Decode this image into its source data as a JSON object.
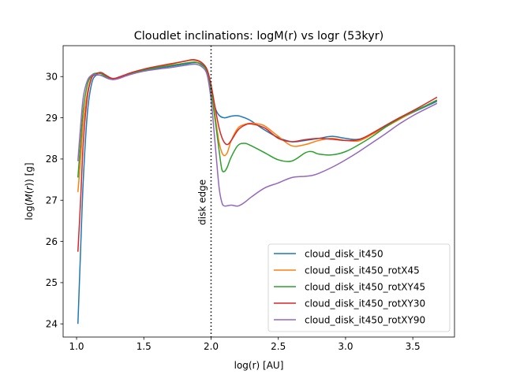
{
  "chart_data": {
    "type": "line",
    "title": "Cloudlet inclinations: logM(r) vs logr (53kyr)",
    "xlabel": "log(r) [AU]",
    "ylabel_prefix": "log(",
    "ylabel_math": "M",
    "ylabel_open": "(",
    "ylabel_var": "r",
    "ylabel_suffix": ")) [g]",
    "xlim": [
      0.9,
      3.81
    ],
    "ylim": [
      23.68,
      30.75
    ],
    "xticks": [
      1.0,
      1.5,
      2.0,
      2.5,
      3.0,
      3.5
    ],
    "xtick_labels": [
      "1.0",
      "1.5",
      "2.0",
      "2.5",
      "3.0",
      "3.5"
    ],
    "yticks": [
      24,
      25,
      26,
      27,
      28,
      29,
      30
    ],
    "ytick_labels": [
      "24",
      "25",
      "26",
      "27",
      "28",
      "29",
      "30"
    ],
    "grid": false,
    "legend_position": "lower-right",
    "annotation": {
      "text": "disk edge",
      "x": 2.0,
      "style": "dotted vertical line"
    },
    "series": [
      {
        "name": "cloud_disk_it450",
        "color": "#1f77b4",
        "x": [
          1.01,
          1.03,
          1.05,
          1.08,
          1.11,
          1.14,
          1.18,
          1.22,
          1.26,
          1.3,
          1.4,
          1.5,
          1.6,
          1.7,
          1.8,
          1.88,
          1.93,
          1.97,
          2.0,
          2.03,
          2.06,
          2.1,
          2.15,
          2.2,
          2.25,
          2.3,
          2.4,
          2.5,
          2.6,
          2.7,
          2.8,
          2.9,
          3.0,
          3.1,
          3.2,
          3.3,
          3.4,
          3.5,
          3.6,
          3.68
        ],
        "y": [
          24.0,
          25.8,
          27.5,
          29.1,
          29.8,
          30.02,
          30.03,
          29.98,
          29.94,
          29.96,
          30.08,
          30.15,
          30.2,
          30.25,
          30.3,
          30.34,
          30.3,
          30.15,
          29.72,
          29.25,
          29.06,
          29.0,
          29.04,
          29.05,
          29.0,
          28.92,
          28.7,
          28.52,
          28.42,
          28.45,
          28.5,
          28.55,
          28.5,
          28.48,
          28.62,
          28.8,
          28.97,
          29.13,
          29.28,
          29.4
        ]
      },
      {
        "name": "cloud_disk_it450_rotX45",
        "color": "#ff7f0e",
        "x": [
          1.01,
          1.03,
          1.05,
          1.08,
          1.11,
          1.14,
          1.18,
          1.22,
          1.26,
          1.3,
          1.4,
          1.5,
          1.6,
          1.7,
          1.8,
          1.87,
          1.93,
          1.97,
          2.0,
          2.03,
          2.06,
          2.09,
          2.12,
          2.15,
          2.2,
          2.25,
          2.3,
          2.35,
          2.4,
          2.5,
          2.6,
          2.7,
          2.8,
          2.9,
          3.0,
          3.1,
          3.2,
          3.3,
          3.4,
          3.5,
          3.6,
          3.68
        ],
        "y": [
          27.2,
          28.0,
          28.9,
          29.6,
          29.97,
          30.07,
          30.09,
          30.02,
          29.95,
          29.97,
          30.08,
          30.17,
          30.24,
          30.3,
          30.37,
          30.4,
          30.33,
          30.17,
          29.75,
          29.05,
          28.4,
          28.1,
          28.15,
          28.45,
          28.75,
          28.84,
          28.87,
          28.85,
          28.8,
          28.55,
          28.32,
          28.35,
          28.45,
          28.5,
          28.45,
          28.44,
          28.6,
          28.78,
          28.96,
          29.14,
          29.3,
          29.43
        ]
      },
      {
        "name": "cloud_disk_it450_rotXY45",
        "color": "#2ca02c",
        "x": [
          1.01,
          1.03,
          1.05,
          1.08,
          1.11,
          1.14,
          1.18,
          1.22,
          1.26,
          1.3,
          1.4,
          1.5,
          1.6,
          1.7,
          1.8,
          1.88,
          1.93,
          1.97,
          2.0,
          2.03,
          2.06,
          2.08,
          2.1,
          2.12,
          2.15,
          2.2,
          2.25,
          2.3,
          2.4,
          2.5,
          2.6,
          2.7,
          2.75,
          2.8,
          2.9,
          3.0,
          3.1,
          3.2,
          3.3,
          3.4,
          3.5,
          3.6,
          3.68
        ],
        "y": [
          27.55,
          28.4,
          29.2,
          29.8,
          30.02,
          30.08,
          30.07,
          30.0,
          29.94,
          29.96,
          30.07,
          30.16,
          30.22,
          30.27,
          30.32,
          30.35,
          30.28,
          30.12,
          29.65,
          28.95,
          28.2,
          27.75,
          27.7,
          27.8,
          28.05,
          28.33,
          28.38,
          28.32,
          28.15,
          27.98,
          27.95,
          28.15,
          28.18,
          28.12,
          28.1,
          28.18,
          28.35,
          28.55,
          28.78,
          28.98,
          29.15,
          29.3,
          29.43
        ]
      },
      {
        "name": "cloud_disk_it450_rotXY30",
        "color": "#d62728",
        "x": [
          1.01,
          1.03,
          1.05,
          1.08,
          1.11,
          1.14,
          1.18,
          1.22,
          1.26,
          1.3,
          1.4,
          1.5,
          1.6,
          1.7,
          1.8,
          1.87,
          1.93,
          1.97,
          2.0,
          2.03,
          2.06,
          2.09,
          2.12,
          2.15,
          2.2,
          2.25,
          2.3,
          2.4,
          2.5,
          2.6,
          2.7,
          2.8,
          2.9,
          3.0,
          3.1,
          3.2,
          3.3,
          3.4,
          3.5,
          3.6,
          3.68
        ],
        "y": [
          25.75,
          27.0,
          28.4,
          29.5,
          29.95,
          30.05,
          30.1,
          30.03,
          29.96,
          29.97,
          30.09,
          30.18,
          30.25,
          30.31,
          30.37,
          30.41,
          30.34,
          30.17,
          29.8,
          29.25,
          28.75,
          28.45,
          28.35,
          28.45,
          28.7,
          28.82,
          28.85,
          28.75,
          28.5,
          28.42,
          28.47,
          28.5,
          28.48,
          28.45,
          28.47,
          28.63,
          28.82,
          29.0,
          29.17,
          29.35,
          29.5
        ]
      },
      {
        "name": "cloud_disk_it450_rotXY90",
        "color": "#9467bd",
        "x": [
          1.01,
          1.03,
          1.05,
          1.08,
          1.11,
          1.14,
          1.18,
          1.22,
          1.26,
          1.3,
          1.4,
          1.5,
          1.6,
          1.7,
          1.8,
          1.88,
          1.93,
          1.97,
          2.0,
          2.02,
          2.04,
          2.06,
          2.08,
          2.1,
          2.15,
          2.2,
          2.25,
          2.3,
          2.4,
          2.5,
          2.6,
          2.7,
          2.75,
          2.8,
          2.9,
          3.0,
          3.1,
          3.2,
          3.3,
          3.4,
          3.5,
          3.6,
          3.68
        ],
        "y": [
          27.95,
          28.8,
          29.5,
          29.9,
          30.03,
          30.05,
          30.03,
          29.97,
          29.93,
          29.94,
          30.05,
          30.13,
          30.18,
          30.22,
          30.27,
          30.3,
          30.24,
          30.05,
          29.45,
          28.75,
          28.0,
          27.3,
          26.95,
          26.86,
          26.88,
          26.86,
          26.95,
          27.08,
          27.3,
          27.42,
          27.55,
          27.58,
          27.6,
          27.65,
          27.8,
          27.98,
          28.18,
          28.4,
          28.62,
          28.85,
          29.05,
          29.22,
          29.35
        ]
      }
    ]
  }
}
